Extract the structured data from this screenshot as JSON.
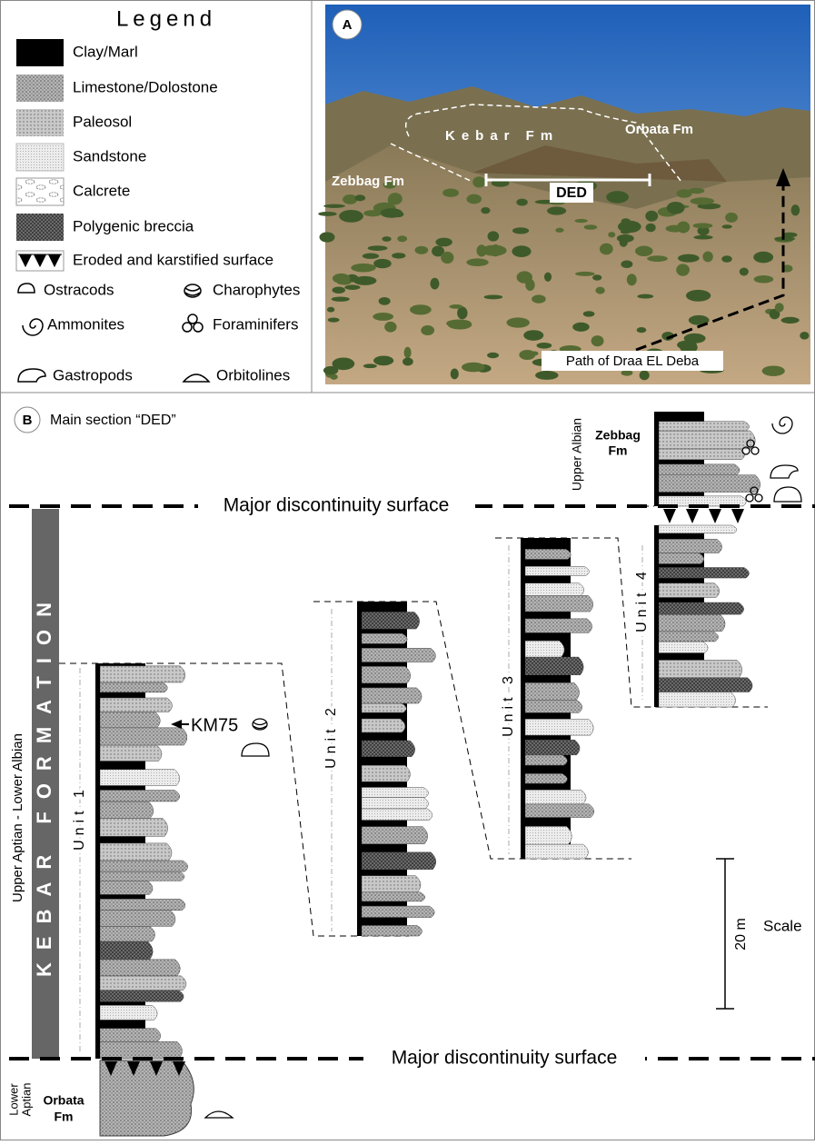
{
  "legend": {
    "title": "Legend",
    "lithologies": [
      "Clay/Marl",
      "Limestone/Dolostone",
      "Paleosol",
      "Sandstone",
      "Calcrete",
      "Polygenic breccia",
      "Eroded and karstified surface"
    ],
    "fossils": [
      "Ostracods",
      "Charophytes",
      "Ammonites",
      "Foraminifers",
      "Gastropods",
      "Orbitolines"
    ]
  },
  "photo": {
    "panel": "A",
    "kebar": "Kebar Fm",
    "orbata": "Orbata Fm",
    "zebbag": "Zebbag Fm",
    "section": "DED",
    "path": "Path of Draa EL Deba"
  },
  "section": {
    "panel": "B",
    "title": "Main section  “DED”",
    "discontinuity_top": "Major discontinuity surface",
    "discontinuity_bottom": "Major discontinuity surface",
    "formation": "KEBAR FORMATION",
    "age": "Upper Aptian - Lower Albian",
    "units": [
      "Unit 1",
      "Unit 2",
      "Unit 3",
      "Unit 4"
    ],
    "sample": "KM75",
    "upper": {
      "age": "Upper Albian",
      "fm": [
        "Zebbag",
        "Fm"
      ]
    },
    "lower": {
      "age": [
        "Lower",
        "Aptian"
      ],
      "fm": [
        "Orbata",
        "Fm"
      ]
    },
    "scale": {
      "length": "20 m",
      "label": "Scale"
    }
  }
}
